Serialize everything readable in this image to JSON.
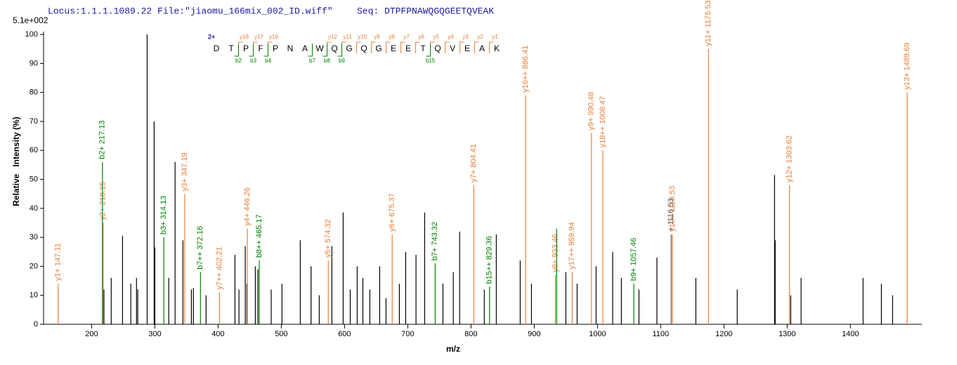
{
  "chart_data": {
    "type": "spectrum",
    "title": "Locus:1.1.1.1089.22 File:\"jiaomu_166mix_002_ID.wiff\"",
    "subtitle": "Seq: DTPFPNAWQGQGEETQVEAK",
    "y_scale_label": "5.1e+002",
    "x_label": "m/z",
    "y_label": "Relative   Intensity (%)",
    "charge": "2+",
    "sequence": [
      "D",
      "T",
      "P",
      "F",
      "P",
      "N",
      "A",
      "W",
      "Q",
      "G",
      "Q",
      "G",
      "E",
      "E",
      "T",
      "Q",
      "V",
      "E",
      "A",
      "K"
    ],
    "y_ions": [
      "y18",
      "y17",
      "y16",
      "y12",
      "y11",
      "y10",
      "y9",
      "y8",
      "y7",
      "y6",
      "y5",
      "y4",
      "y3",
      "y2",
      "y1"
    ],
    "b_ions": [
      "b2",
      "b3",
      "b4",
      "b7",
      "b8",
      "b9",
      "b15"
    ],
    "xlim": [
      124,
      1513
    ],
    "ylim": [
      0,
      101
    ],
    "xticks": [
      200,
      300,
      400,
      500,
      600,
      700,
      800,
      900,
      1000,
      1100,
      1200,
      1300,
      1400
    ],
    "yticks": [
      0,
      10,
      20,
      30,
      40,
      50,
      60,
      70,
      80,
      90,
      100
    ],
    "series": [
      {
        "color": "#000000",
        "x": [
          287.8,
          298.9,
          300,
          332,
          344.4,
          357.8,
          361,
          217.8,
          219.5,
          231,
          248.9,
          262,
          271,
          273,
          322,
          381,
          426.7,
          433,
          443,
          445.5,
          458.9,
          463,
          484,
          501,
          530,
          547,
          560,
          580,
          597.8,
          609,
          620,
          629,
          640,
          655.6,
          665.6,
          686.7,
          696.7,
          713,
          726.7,
          755.6,
          772,
          782,
          821,
          840,
          877.8,
          895.6,
          950,
          967.8,
          997.8,
          1024,
          1037.8,
          1065.6,
          1094,
          1155.6,
          1221,
          1280,
          1281,
          1305.6,
          1322,
          1420,
          1449,
          1466.7
        ],
        "values": [
          100,
          70,
          26.5,
          56,
          29,
          12,
          12.5,
          35,
          12,
          16,
          30.5,
          14,
          16,
          12,
          16,
          10,
          24,
          12,
          27,
          14,
          20,
          19,
          12,
          14,
          29,
          20,
          10,
          27,
          38.6,
          12,
          20,
          16,
          12,
          20,
          9,
          14,
          25,
          24,
          38.6,
          14,
          18,
          32,
          12,
          31,
          22,
          14,
          18,
          14,
          20,
          25,
          16,
          12,
          23,
          16,
          12,
          51.5,
          29,
          10,
          16,
          16,
          14,
          10
        ]
      },
      {
        "color": "#e8803a",
        "x": [
          147.11,
          218.15,
          347.19,
          402.21,
          446.26,
          574.32,
          675.37,
          804.41,
          886.41,
          933.46,
          959.94,
          990.48,
          1008.47,
          1118.53,
          1175.53,
          1303.62,
          1489.69
        ],
        "values": [
          14,
          35,
          45,
          11,
          33,
          22,
          31,
          48,
          79,
          17,
          18,
          66,
          60,
          31,
          95,
          48,
          80
        ],
        "labels": [
          "y1+ 147.11",
          "y2+ 218.15",
          "y3+ 347.19",
          "y7++ 402.21",
          "y4+ 446.26",
          "y5+ 574.32",
          "y6+ 675.37",
          "y7+ 804.41",
          "y16++ 886.41",
          "y8+ 933.46",
          "y17++ 959.94",
          "y9+ 990.48",
          "y18++ 1008.47",
          "y10+ 1118.53",
          "y11+ 1175.53",
          "y12+ 1303.62",
          "y13+ 1489.69"
        ]
      },
      {
        "color": "#008000",
        "x": [
          217.13,
          314.13,
          372.16,
          465.17,
          743.32,
          829.36,
          1057.46,
          935.41
        ],
        "values": [
          56,
          30,
          18,
          22,
          21,
          13,
          14,
          33
        ],
        "labels": [
          "b2+ 217.13",
          "b3+ 314.13",
          "b7++ 372.16",
          "b8++ 465.17",
          "b7+ 743.32",
          "b15++ 829.36",
          "b9+ 1057.46",
          null
        ]
      },
      {
        "color": "#606060",
        "x": [
          1116.53
        ],
        "values": [
          31
        ],
        "labels": [
          "+ 1116.53"
        ]
      }
    ]
  }
}
